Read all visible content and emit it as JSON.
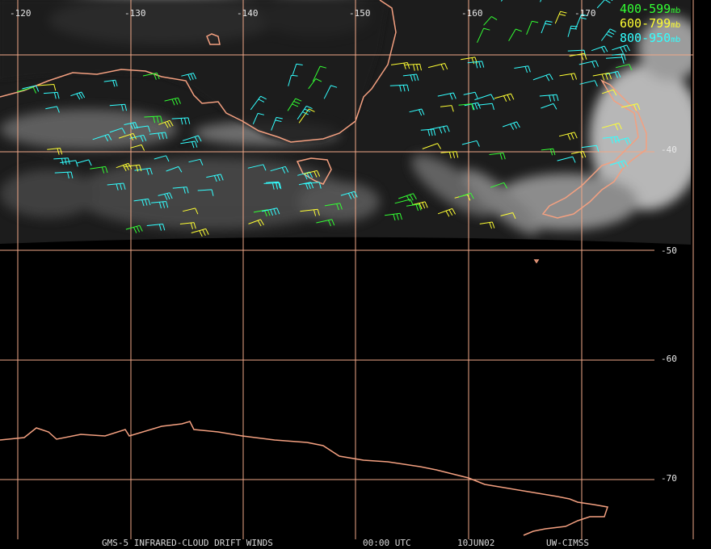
{
  "longitude_labels": [
    "-120",
    "-130",
    "-140",
    "-150",
    "-160",
    "-170"
  ],
  "latitude_labels": [
    "-40",
    "-50",
    "-60",
    "-70"
  ],
  "legend": [
    {
      "range": "400-599",
      "unit": "mb"
    },
    {
      "range": "600-799",
      "unit": "mb"
    },
    {
      "range": "800-950",
      "unit": "mb"
    }
  ],
  "footer": [
    "GMS-5 INFRARED-CLOUD DRIFT WINDS",
    "00:00 UTC",
    "10JUN02",
    "UW-CIMSS"
  ]
}
